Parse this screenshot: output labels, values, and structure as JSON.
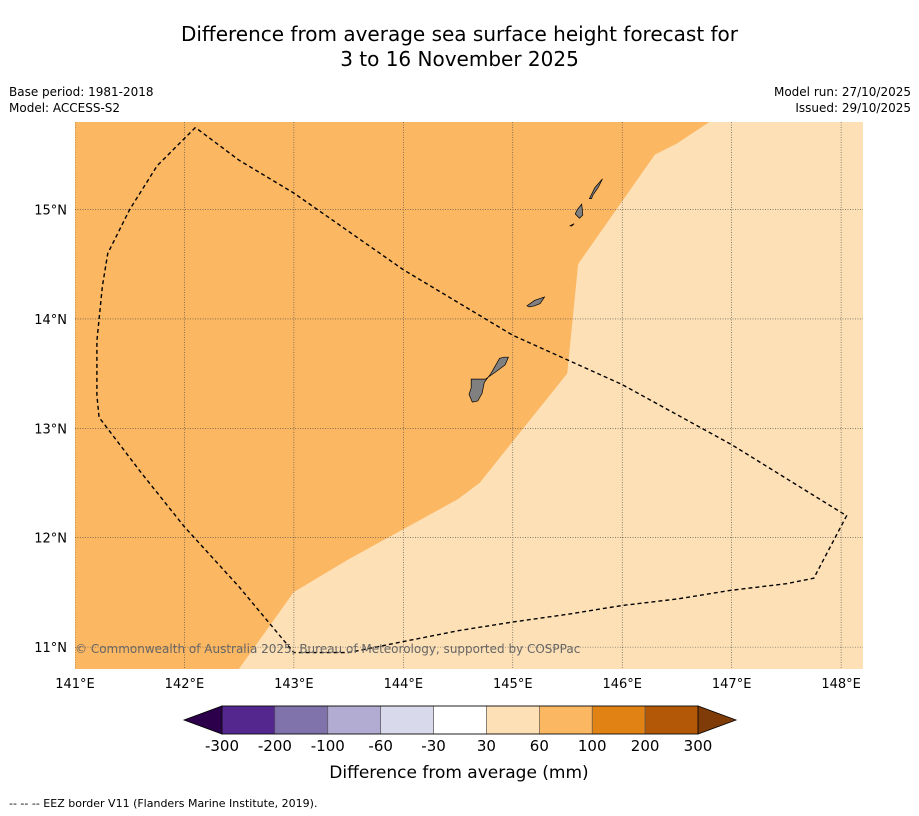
{
  "title": {
    "line1": "Difference from average sea surface height forecast for",
    "line2": "3 to 16 November 2025"
  },
  "meta": {
    "base_period": "Base period: 1981-2018",
    "model": "Model: ACCESS-S2",
    "model_run": "Model run: 27/10/2025",
    "issued": "Issued: 29/10/2025"
  },
  "chart_data": {
    "type": "map",
    "title": "Difference from average sea surface height forecast for 3 to 16 November 2025",
    "lon_range": [
      141.0,
      148.2
    ],
    "lat_range": [
      10.8,
      15.8
    ],
    "x_ticks": [
      {
        "value": 141,
        "label": "141°E"
      },
      {
        "value": 142,
        "label": "142°E"
      },
      {
        "value": 143,
        "label": "143°E"
      },
      {
        "value": 144,
        "label": "144°E"
      },
      {
        "value": 145,
        "label": "145°E"
      },
      {
        "value": 146,
        "label": "146°E"
      },
      {
        "value": 147,
        "label": "147°E"
      },
      {
        "value": 148,
        "label": "148°E"
      }
    ],
    "y_ticks": [
      {
        "value": 11,
        "label": "11°N"
      },
      {
        "value": 12,
        "label": "12°N"
      },
      {
        "value": 13,
        "label": "13°N"
      },
      {
        "value": 14,
        "label": "14°N"
      },
      {
        "value": 15,
        "label": "15°N"
      }
    ],
    "regions": [
      {
        "name": "60 to 100 mm",
        "color": "#fbb762",
        "polygon": [
          [
            141.0,
            15.8
          ],
          [
            146.8,
            15.8
          ],
          [
            146.5,
            15.6
          ],
          [
            146.3,
            15.5
          ],
          [
            145.6,
            14.5
          ],
          [
            145.5,
            13.5
          ],
          [
            144.7,
            12.5
          ],
          [
            144.5,
            12.35
          ],
          [
            143.5,
            11.8
          ],
          [
            143.0,
            11.5
          ],
          [
            142.5,
            10.8
          ],
          [
            141.0,
            10.8
          ]
        ]
      },
      {
        "name": "30 to 60 mm",
        "color": "#fde0b6",
        "polygon": [
          [
            146.8,
            15.8
          ],
          [
            148.2,
            15.8
          ],
          [
            148.2,
            10.8
          ],
          [
            142.5,
            10.8
          ],
          [
            143.0,
            11.5
          ],
          [
            143.5,
            11.8
          ],
          [
            144.5,
            12.35
          ],
          [
            144.7,
            12.5
          ],
          [
            145.5,
            13.5
          ],
          [
            145.6,
            14.5
          ],
          [
            146.3,
            15.5
          ],
          [
            146.5,
            15.6
          ]
        ]
      }
    ],
    "eez_border": [
      [
        142.1,
        15.75
      ],
      [
        141.75,
        15.4
      ],
      [
        141.5,
        15.0
      ],
      [
        141.3,
        14.6
      ],
      [
        141.25,
        14.3
      ],
      [
        141.2,
        13.8
      ],
      [
        141.2,
        13.3
      ],
      [
        141.22,
        13.1
      ],
      [
        141.6,
        12.6
      ],
      [
        142.0,
        12.1
      ],
      [
        142.5,
        11.55
      ],
      [
        143.0,
        10.95
      ],
      [
        143.5,
        10.95
      ],
      [
        144.0,
        11.05
      ],
      [
        144.5,
        11.15
      ],
      [
        145.0,
        11.23
      ],
      [
        145.5,
        11.3
      ],
      [
        146.0,
        11.38
      ],
      [
        146.5,
        11.44
      ],
      [
        147.0,
        11.52
      ],
      [
        147.5,
        11.58
      ],
      [
        147.75,
        11.63
      ],
      [
        148.05,
        12.2
      ],
      [
        147.0,
        12.85
      ],
      [
        146.0,
        13.4
      ],
      [
        145.0,
        13.85
      ],
      [
        144.0,
        14.45
      ],
      [
        143.5,
        14.8
      ],
      [
        143.0,
        15.15
      ],
      [
        142.5,
        15.45
      ],
      [
        142.1,
        15.75
      ]
    ],
    "islands": [
      {
        "name": "Guam",
        "color": "#808080",
        "polygon": [
          [
            144.62,
            13.45
          ],
          [
            144.75,
            13.45
          ],
          [
            144.85,
            13.52
          ],
          [
            144.93,
            13.58
          ],
          [
            144.96,
            13.65
          ],
          [
            144.92,
            13.65
          ],
          [
            144.88,
            13.64
          ],
          [
            144.8,
            13.5
          ],
          [
            144.74,
            13.42
          ],
          [
            144.72,
            13.32
          ],
          [
            144.68,
            13.25
          ],
          [
            144.63,
            13.24
          ],
          [
            144.6,
            13.31
          ],
          [
            144.62,
            13.37
          ]
        ]
      },
      {
        "name": "Rota",
        "color": "#808080",
        "polygon": [
          [
            145.13,
            14.12
          ],
          [
            145.2,
            14.17
          ],
          [
            145.29,
            14.2
          ],
          [
            145.25,
            14.14
          ],
          [
            145.2,
            14.12
          ],
          [
            145.15,
            14.11
          ]
        ]
      },
      {
        "name": "Tinian",
        "color": "#808080",
        "polygon": [
          [
            145.59,
            15.0
          ],
          [
            145.63,
            15.05
          ],
          [
            145.64,
            14.95
          ],
          [
            145.61,
            14.92
          ],
          [
            145.57,
            14.96
          ]
        ]
      },
      {
        "name": "Saipan",
        "color": "#808080",
        "polygon": [
          [
            145.7,
            15.1
          ],
          [
            145.75,
            15.2
          ],
          [
            145.82,
            15.28
          ],
          [
            145.78,
            15.2
          ],
          [
            145.73,
            15.13
          ],
          [
            145.72,
            15.1
          ]
        ]
      },
      {
        "name": "Aguijan",
        "color": "#808080",
        "polygon": [
          [
            145.52,
            14.85
          ],
          [
            145.56,
            14.87
          ],
          [
            145.54,
            14.85
          ]
        ]
      }
    ],
    "copyright": "© Commonwealth of Australia 2025, Bureau of Meteorology, supported by COSPPac",
    "colorbar": {
      "label": "Difference from average (mm)",
      "tick_labels": [
        "-300",
        "-200",
        "-100",
        "-60",
        "-30",
        "30",
        "60",
        "100",
        "200",
        "300"
      ],
      "colors": [
        "#54278f",
        "#8073ac",
        "#b2abd2",
        "#d8daeb",
        "#ffffff",
        "#fde0b6",
        "#fbb762",
        "#e08214",
        "#b35806"
      ],
      "under_color": "#2d004b",
      "over_color": "#7f3b08"
    }
  },
  "footer": {
    "legend_text": "--  --  -- EEZ border V11 (Flanders Marine Institute, 2019)."
  }
}
